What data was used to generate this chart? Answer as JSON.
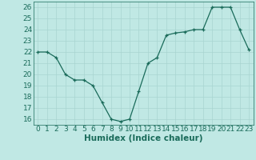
{
  "x": [
    0,
    1,
    2,
    3,
    4,
    5,
    6,
    7,
    8,
    9,
    10,
    11,
    12,
    13,
    14,
    15,
    16,
    17,
    18,
    19,
    20,
    21,
    22,
    23
  ],
  "y": [
    22,
    22,
    21.5,
    20,
    19.5,
    19.5,
    19,
    17.5,
    16,
    15.8,
    16,
    18.5,
    21,
    21.5,
    23.5,
    23.7,
    23.8,
    24,
    24,
    26,
    26,
    26,
    24,
    22.2
  ],
  "xlabel": "Humidex (Indice chaleur)",
  "ylim": [
    15.5,
    26.5
  ],
  "xlim": [
    -0.5,
    23.5
  ],
  "yticks": [
    16,
    17,
    18,
    19,
    20,
    21,
    22,
    23,
    24,
    25,
    26
  ],
  "xticks": [
    0,
    1,
    2,
    3,
    4,
    5,
    6,
    7,
    8,
    9,
    10,
    11,
    12,
    13,
    14,
    15,
    16,
    17,
    18,
    19,
    20,
    21,
    22,
    23
  ],
  "line_color": "#1a6b5a",
  "marker": "+",
  "bg_color": "#c0e8e4",
  "grid_color": "#a8d4d0",
  "tick_label_color": "#1a6b5a",
  "xlabel_color": "#1a6b5a",
  "font_size": 6.5,
  "xlabel_fontsize": 7.5,
  "linewidth": 0.9,
  "markersize": 3.5,
  "markeredgewidth": 0.9
}
